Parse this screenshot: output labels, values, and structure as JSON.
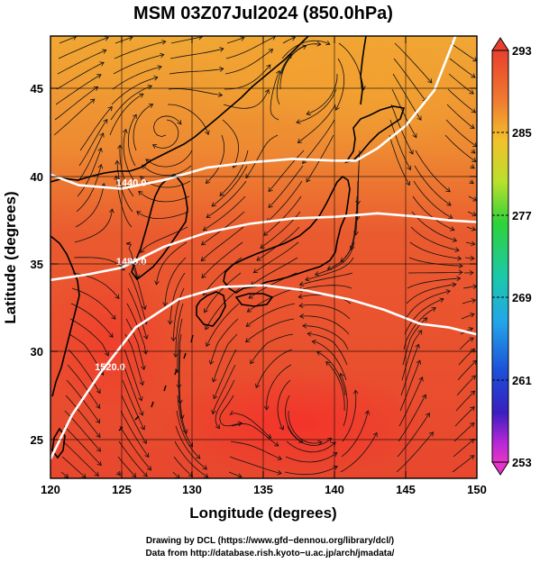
{
  "title": "MSM 03Z07Jul2024 (850.0hPa)",
  "xlabel": "Longitude (degrees)",
  "ylabel": "Latitude  (degrees)",
  "x_ticks": [
    "120",
    "125",
    "130",
    "135",
    "140",
    "145",
    "150"
  ],
  "y_ticks": [
    "25",
    "30",
    "35",
    "40",
    "45"
  ],
  "colorbar": {
    "ticks": [
      "293",
      "285",
      "277",
      "269",
      "261",
      "253"
    ],
    "min": 253,
    "max": 293
  },
  "map": {
    "lon_range": [
      120,
      150
    ],
    "lat_range": [
      22.4,
      47.6
    ],
    "contours": [
      {
        "label": "1440.0",
        "points": [
          [
            120,
            39.7
          ],
          [
            122,
            39.1
          ],
          [
            125,
            38.9
          ],
          [
            128,
            39.4
          ],
          [
            131,
            40.1
          ],
          [
            134,
            40.4
          ],
          [
            137,
            40.6
          ],
          [
            140,
            40.5
          ],
          [
            141.5,
            40.5
          ],
          [
            143,
            41.2
          ],
          [
            145,
            42.5
          ],
          [
            147,
            44.5
          ],
          [
            148.5,
            47.6
          ]
        ]
      },
      {
        "label": "1480.0",
        "points": [
          [
            120,
            33.7
          ],
          [
            122.5,
            34.0
          ],
          [
            125,
            34.4
          ],
          [
            128,
            35.6
          ],
          [
            131,
            36.4
          ],
          [
            134,
            36.9
          ],
          [
            137,
            37.2
          ],
          [
            140,
            37.3
          ],
          [
            143,
            37.5
          ],
          [
            146,
            37.3
          ],
          [
            148,
            37.1
          ],
          [
            150,
            37.0
          ]
        ]
      },
      {
        "label": "1520.0",
        "points": [
          [
            120,
            23.5
          ],
          [
            121.5,
            26.0
          ],
          [
            123.5,
            28.4
          ],
          [
            126,
            31.0
          ],
          [
            129,
            32.6
          ],
          [
            132,
            33.3
          ],
          [
            135,
            33.4
          ],
          [
            138,
            33.1
          ],
          [
            141,
            32.6
          ],
          [
            143.5,
            32.0
          ],
          [
            146,
            31.2
          ],
          [
            148,
            31.0
          ],
          [
            150,
            30.6
          ]
        ]
      }
    ],
    "colors": {
      "warm": "#e8482e",
      "cool": "#f09a32",
      "hot": "#f0352b",
      "coast": "#000000",
      "contour": "#ffffff"
    }
  },
  "credits": [
    "Drawing by DCL (https://www.gfd−dennou.org/library/dcl/)",
    "Data from http://database.rish.kyoto−u.ac.jp/arch/jmadata/"
  ]
}
